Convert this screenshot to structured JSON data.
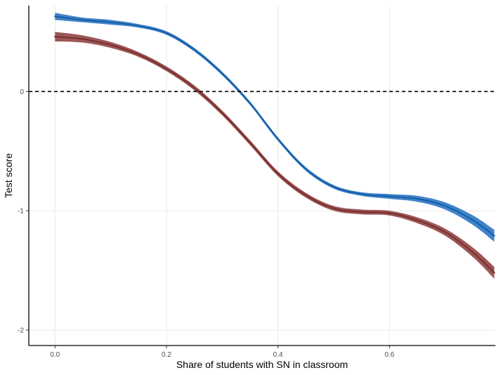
{
  "chart_data": {
    "type": "line",
    "title": "",
    "xlabel": "Share of students with SN in classroom",
    "ylabel": "Test score",
    "xlim": [
      -0.047,
      0.79
    ],
    "ylim": [
      -2.13,
      0.72
    ],
    "x_ticks": [
      0.0,
      0.2,
      0.4,
      0.6
    ],
    "x_tick_labels": [
      "0.0",
      "0.2",
      "0.4",
      "0.6"
    ],
    "y_ticks": [
      0,
      -1,
      -2
    ],
    "y_tick_labels": [
      "0",
      "-1",
      "-2"
    ],
    "grid": true,
    "legend": "none",
    "reference_line": {
      "y": 0,
      "style": "dashed",
      "color": "#000000"
    },
    "series": [
      {
        "color": "#1f6fbf",
        "points": [
          [
            0.0,
            0.63
          ],
          [
            0.05,
            0.6
          ],
          [
            0.1,
            0.58
          ],
          [
            0.15,
            0.55
          ],
          [
            0.2,
            0.49
          ],
          [
            0.25,
            0.35
          ],
          [
            0.3,
            0.15
          ],
          [
            0.35,
            -0.1
          ],
          [
            0.4,
            -0.4
          ],
          [
            0.45,
            -0.65
          ],
          [
            0.5,
            -0.8
          ],
          [
            0.55,
            -0.86
          ],
          [
            0.6,
            -0.88
          ],
          [
            0.65,
            -0.9
          ],
          [
            0.7,
            -0.96
          ],
          [
            0.75,
            -1.08
          ],
          [
            0.788,
            -1.21
          ]
        ],
        "band_halfwidth": [
          0.03,
          0.02,
          0.02,
          0.015,
          0.015,
          0.015,
          0.015,
          0.015,
          0.015,
          0.015,
          0.015,
          0.015,
          0.02,
          0.025,
          0.03,
          0.04,
          0.05
        ]
      },
      {
        "color": "#8b3a3a",
        "points": [
          [
            0.0,
            0.46
          ],
          [
            0.05,
            0.44
          ],
          [
            0.1,
            0.39
          ],
          [
            0.15,
            0.31
          ],
          [
            0.2,
            0.19
          ],
          [
            0.25,
            0.03
          ],
          [
            0.3,
            -0.18
          ],
          [
            0.35,
            -0.43
          ],
          [
            0.4,
            -0.69
          ],
          [
            0.45,
            -0.87
          ],
          [
            0.5,
            -0.98
          ],
          [
            0.55,
            -1.01
          ],
          [
            0.6,
            -1.02
          ],
          [
            0.65,
            -1.08
          ],
          [
            0.7,
            -1.18
          ],
          [
            0.75,
            -1.35
          ],
          [
            0.788,
            -1.52
          ]
        ],
        "band_halfwidth": [
          0.04,
          0.03,
          0.025,
          0.02,
          0.02,
          0.02,
          0.02,
          0.02,
          0.02,
          0.02,
          0.02,
          0.02,
          0.02,
          0.025,
          0.03,
          0.04,
          0.05
        ]
      }
    ]
  }
}
